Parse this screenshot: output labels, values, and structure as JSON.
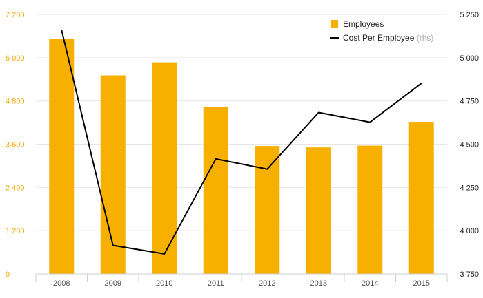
{
  "chart_data": {
    "type": "bar",
    "categories": [
      "2008",
      "2009",
      "2010",
      "2011",
      "2012",
      "2013",
      "2014",
      "2015"
    ],
    "series": [
      {
        "name": "Employees",
        "type": "bar",
        "axis": "left",
        "color": "#f7b000",
        "values": [
          6520,
          5510,
          5870,
          4630,
          3550,
          3510,
          3560,
          4220
        ]
      },
      {
        "name": "Cost Per Employee",
        "name_suffix": "(rhs)",
        "type": "line",
        "axis": "right",
        "color": "#000000",
        "values": [
          5160,
          3915,
          3866,
          4415,
          4356,
          4683,
          4627,
          4852
        ]
      }
    ],
    "y_left": {
      "min": 0,
      "max": 7200,
      "ticks": [
        0,
        1200,
        2400,
        3600,
        4800,
        6000,
        7200
      ],
      "tick_labels": [
        "0",
        "1 200",
        "2 400",
        "3 600",
        "4 800",
        "6 000",
        "7 200"
      ]
    },
    "y_right": {
      "min": 3750,
      "max": 5250,
      "ticks": [
        3750,
        4000,
        4250,
        4500,
        4750,
        5000,
        5250
      ],
      "tick_labels": [
        "3 750",
        "4 000",
        "4 250",
        "4 500",
        "4 750",
        "5 000",
        "5 250"
      ]
    },
    "grid": true,
    "legend_position": "top-right",
    "title": "",
    "xlabel": "",
    "ylabel": ""
  }
}
